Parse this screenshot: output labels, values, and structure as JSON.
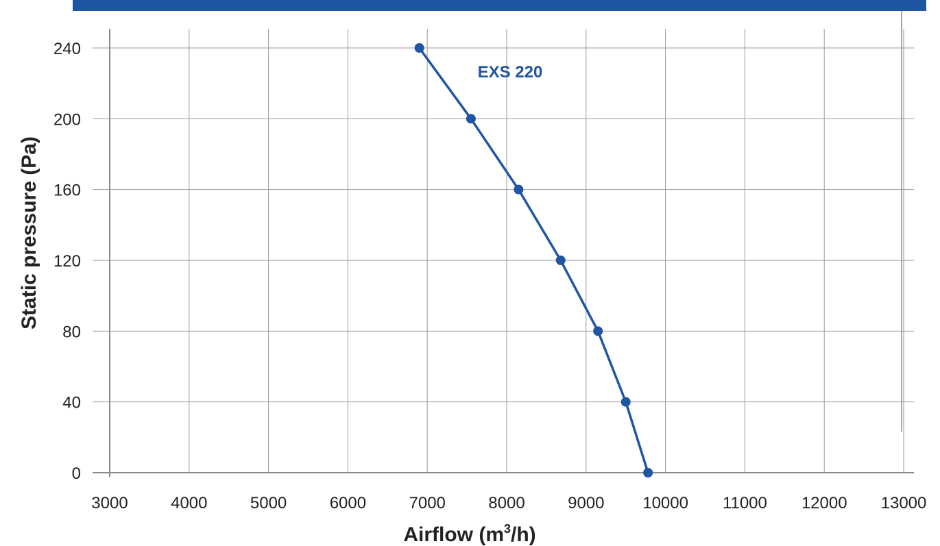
{
  "colors": {
    "banner": "#1f55a3",
    "series": "#1f55a3",
    "grid": "#9a9a9a",
    "axis": "#8a8a8a",
    "text": "#222222"
  },
  "chart_data": {
    "type": "line",
    "xlabel": "Airflow (m",
    "xlabel_superscript": "3",
    "xlabel_suffix": "/h)",
    "ylabel": "Static pressure (Pa)",
    "xlim": [
      3000,
      13000
    ],
    "ylim": [
      0,
      240
    ],
    "x_ticks": [
      3000,
      4000,
      5000,
      6000,
      7000,
      8000,
      9000,
      10000,
      11000,
      12000,
      13000
    ],
    "y_ticks": [
      0,
      40,
      80,
      120,
      160,
      200,
      240
    ],
    "grid": true,
    "series": [
      {
        "name": "EXS 220",
        "x": [
          6900,
          7550,
          8150,
          8680,
          9150,
          9500,
          9780
        ],
        "y": [
          240,
          200,
          160,
          120,
          80,
          40,
          0
        ]
      }
    ]
  }
}
